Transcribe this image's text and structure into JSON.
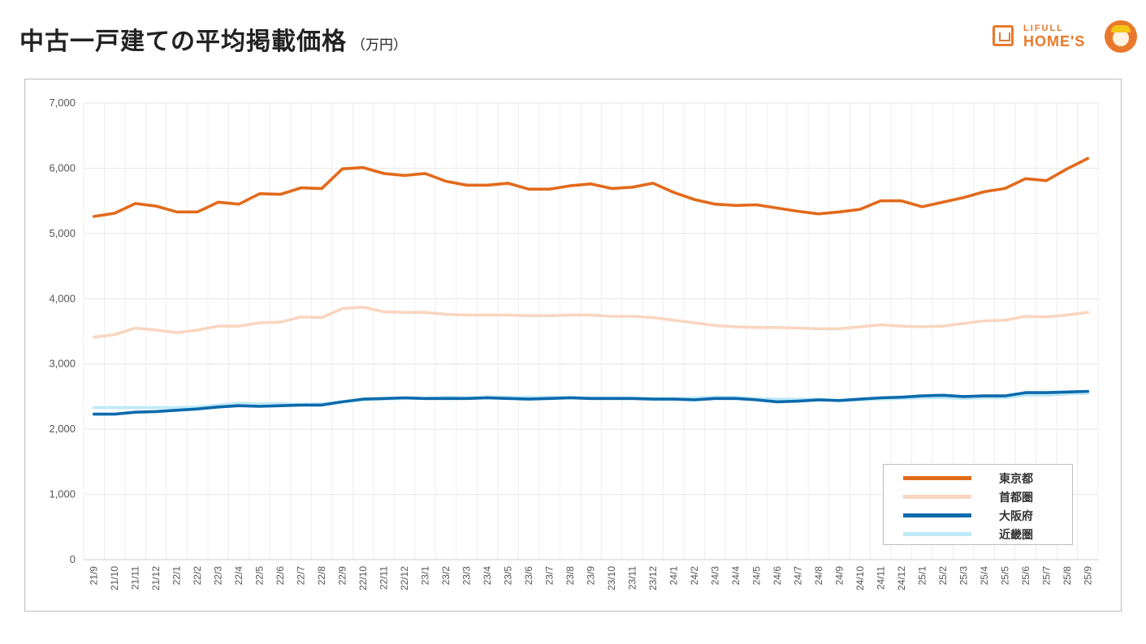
{
  "header": {
    "title": "中古一戸建ての平均掲載価格",
    "unit": "（万円）"
  },
  "brand": {
    "line1": "LIFULL",
    "line2": "HOME'S",
    "color": "#e8792a"
  },
  "chart_data": {
    "type": "line",
    "title": "中古一戸建ての平均掲載価格",
    "ylabel": "（万円）",
    "xlabel": "",
    "ylim": [
      0,
      7000
    ],
    "yticks": [
      0,
      1000,
      2000,
      3000,
      4000,
      5000,
      6000,
      7000
    ],
    "ytick_labels": [
      "0",
      "1,000",
      "2,000",
      "3,000",
      "4,000",
      "5,000",
      "6,000",
      "7,000"
    ],
    "grid": true,
    "legend_position": "bottom-right",
    "categories": [
      "21/9",
      "21/10",
      "21/11",
      "21/12",
      "22/1",
      "22/2",
      "22/3",
      "22/4",
      "22/5",
      "22/6",
      "22/7",
      "22/8",
      "22/9",
      "22/10",
      "22/11",
      "22/12",
      "23/1",
      "23/2",
      "23/3",
      "23/4",
      "23/5",
      "23/6",
      "23/7",
      "23/8",
      "23/9",
      "23/10",
      "23/11",
      "23/12",
      "24/1",
      "24/2",
      "24/3",
      "24/4",
      "24/5",
      "24/6",
      "24/7",
      "24/8",
      "24/9",
      "24/10",
      "24/11",
      "24/12",
      "25/1",
      "25/2",
      "25/3",
      "25/4",
      "25/5",
      "25/6",
      "25/7",
      "25/8",
      "25/9"
    ],
    "series": [
      {
        "name": "東京都",
        "color": "#e26a1b",
        "values": [
          5260,
          5310,
          5460,
          5420,
          5330,
          5330,
          5480,
          5450,
          5610,
          5600,
          5700,
          5690,
          5990,
          6010,
          5920,
          5890,
          5920,
          5800,
          5740,
          5740,
          5770,
          5680,
          5680,
          5730,
          5760,
          5690,
          5710,
          5770,
          5630,
          5520,
          5450,
          5430,
          5440,
          5390,
          5340,
          5300,
          5330,
          5370,
          5500,
          5500,
          5410,
          5480,
          5550,
          5640,
          5690,
          5840,
          5810,
          5990,
          6150
        ]
      },
      {
        "name": "首都圏",
        "color": "#f8d6bf",
        "values": [
          3410,
          3450,
          3550,
          3520,
          3480,
          3520,
          3580,
          3580,
          3630,
          3640,
          3720,
          3710,
          3850,
          3870,
          3800,
          3790,
          3790,
          3760,
          3750,
          3750,
          3750,
          3740,
          3740,
          3750,
          3750,
          3730,
          3730,
          3710,
          3670,
          3630,
          3590,
          3570,
          3560,
          3560,
          3550,
          3540,
          3540,
          3570,
          3600,
          3580,
          3570,
          3580,
          3620,
          3660,
          3670,
          3730,
          3720,
          3750,
          3790
        ]
      },
      {
        "name": "大阪府",
        "color": "#0b6aad",
        "values": [
          2230,
          2230,
          2260,
          2270,
          2290,
          2310,
          2340,
          2360,
          2350,
          2360,
          2370,
          2370,
          2420,
          2460,
          2470,
          2480,
          2470,
          2470,
          2470,
          2480,
          2470,
          2460,
          2470,
          2480,
          2470,
          2470,
          2470,
          2460,
          2460,
          2450,
          2470,
          2470,
          2450,
          2420,
          2430,
          2450,
          2440,
          2460,
          2480,
          2490,
          2510,
          2520,
          2500,
          2510,
          2510,
          2560,
          2560,
          2570,
          2580
        ]
      },
      {
        "name": "近畿圏",
        "color": "#bfe9f7",
        "values": [
          2330,
          2330,
          2330,
          2330,
          2330,
          2340,
          2370,
          2400,
          2390,
          2390,
          2380,
          2390,
          2420,
          2450,
          2460,
          2470,
          2470,
          2490,
          2480,
          2500,
          2490,
          2490,
          2490,
          2490,
          2480,
          2480,
          2480,
          2470,
          2470,
          2480,
          2490,
          2490,
          2470,
          2460,
          2460,
          2460,
          2440,
          2450,
          2460,
          2470,
          2480,
          2480,
          2470,
          2480,
          2480,
          2520,
          2520,
          2540,
          2550
        ]
      }
    ]
  }
}
